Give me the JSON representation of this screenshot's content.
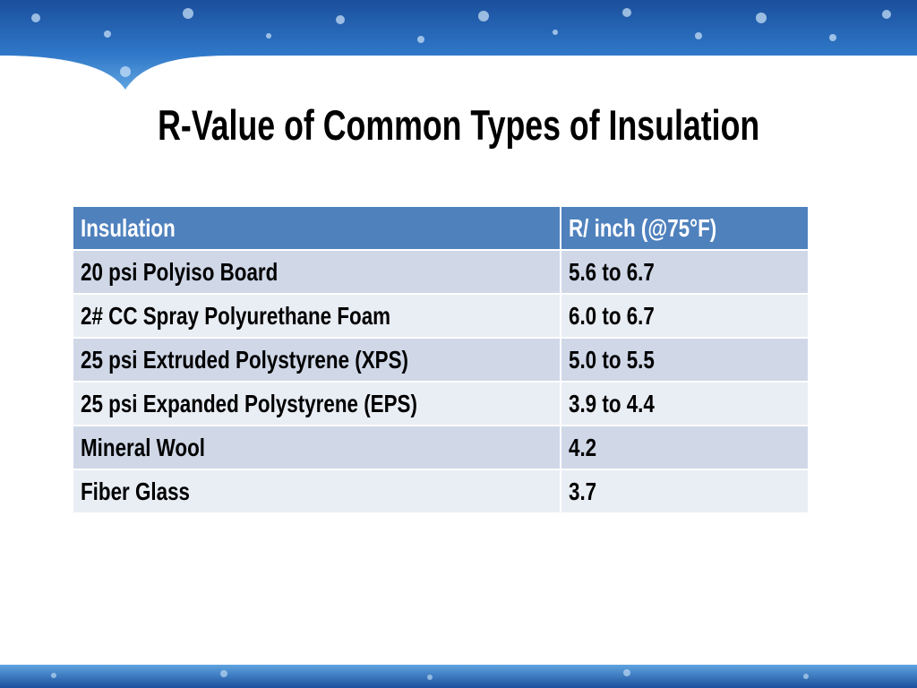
{
  "title": "R-Value of Common Types of Insulation",
  "table": {
    "header": [
      "Insulation",
      "R/ inch (@75°F)"
    ],
    "rows": [
      [
        "20 psi Polyiso Board",
        "5.6 to 6.7"
      ],
      [
        "2# CC Spray Polyurethane Foam",
        "6.0 to 6.7"
      ],
      [
        "25 psi Extruded Polystyrene (XPS)",
        "5.0 to 5.5"
      ],
      [
        "25 psi Expanded Polystyrene (EPS)",
        "3.9 to 4.4"
      ],
      [
        "Mineral Wool",
        "4.2"
      ],
      [
        "Fiber Glass",
        "3.7"
      ]
    ]
  }
}
